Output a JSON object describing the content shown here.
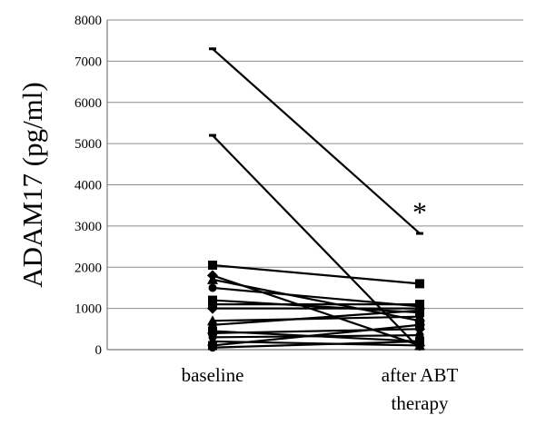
{
  "chart_data": {
    "type": "line",
    "ylabel": "ADAM17 (pg/ml)",
    "ylim": [
      0,
      8000
    ],
    "yticks": [
      0,
      1000,
      2000,
      3000,
      4000,
      5000,
      6000,
      7000,
      8000
    ],
    "categories": [
      "baseline",
      "after ABT therapy"
    ],
    "grid": true,
    "annotations": [
      {
        "text": "*",
        "category": "after ABT therapy",
        "y": 3400
      }
    ],
    "series": [
      {
        "values": [
          7300,
          2820
        ],
        "marker": "dash"
      },
      {
        "values": [
          5200,
          20
        ],
        "marker": "dash"
      },
      {
        "values": [
          2050,
          1600
        ],
        "marker": "square"
      },
      {
        "values": [
          1800,
          100
        ],
        "marker": "diamond"
      },
      {
        "values": [
          1700,
          700
        ],
        "marker": "triangle"
      },
      {
        "values": [
          1500,
          1050
        ],
        "marker": "circle"
      },
      {
        "values": [
          1200,
          900
        ],
        "marker": "square"
      },
      {
        "values": [
          1100,
          1100
        ],
        "marker": "square"
      },
      {
        "values": [
          1000,
          1000
        ],
        "marker": "diamond"
      },
      {
        "values": [
          700,
          800
        ],
        "marker": "triangle"
      },
      {
        "values": [
          600,
          950
        ],
        "marker": "circle"
      },
      {
        "values": [
          450,
          200
        ],
        "marker": "square"
      },
      {
        "values": [
          400,
          500
        ],
        "marker": "diamond"
      },
      {
        "values": [
          300,
          350
        ],
        "marker": "circle"
      },
      {
        "values": [
          200,
          100
        ],
        "marker": "triangle"
      },
      {
        "values": [
          100,
          600
        ],
        "marker": "square"
      },
      {
        "values": [
          50,
          200
        ],
        "marker": "circle"
      }
    ]
  }
}
